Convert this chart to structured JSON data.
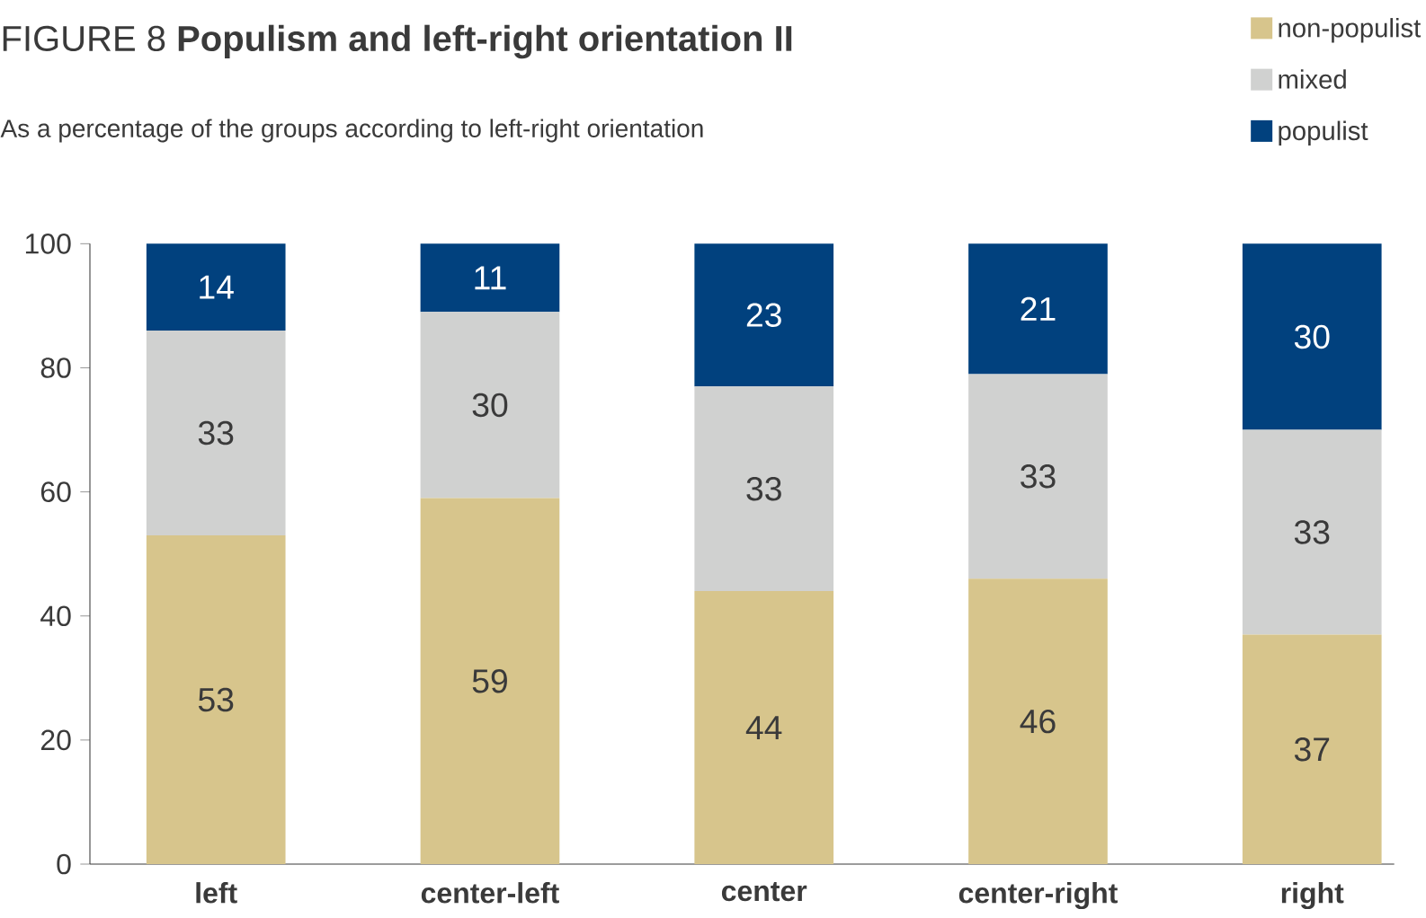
{
  "chart_data": {
    "type": "bar",
    "stacked": true,
    "title": "FIGURE 8  **Populism and left-right orientation II**",
    "subtitle": "As a percentage of the groups according to left-right orientation",
    "categories": [
      "left",
      "center-left",
      "center",
      "center-right",
      "right"
    ],
    "series": [
      {
        "name": "non-populist",
        "color": "#d7c58c",
        "values": [
          53,
          59,
          44,
          46,
          37
        ]
      },
      {
        "name": "mixed",
        "color": "#d0d1d0",
        "values": [
          33,
          30,
          33,
          33,
          33
        ]
      },
      {
        "name": "populist",
        "color": "#01417e",
        "values": [
          14,
          11,
          23,
          21,
          30
        ]
      }
    ],
    "ylim": [
      0,
      100
    ],
    "yticks": [
      0,
      20,
      40,
      60,
      80,
      100
    ],
    "data_labels": true,
    "legend": "top right",
    "grid": false
  }
}
